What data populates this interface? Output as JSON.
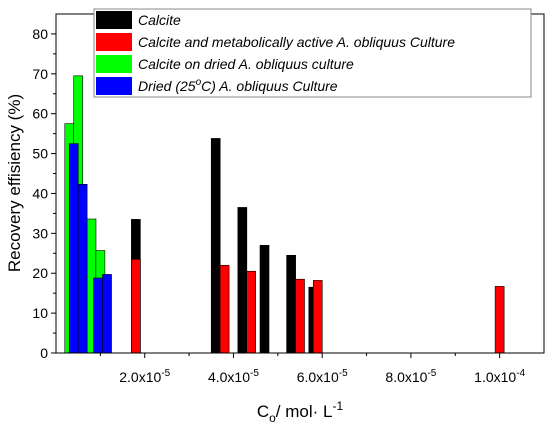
{
  "chart_data": {
    "type": "bar",
    "xlabel": {
      "main": "C",
      "sub": "o",
      "rest": "/ mol· L",
      "sup": "-1"
    },
    "ylabel": "Recovery effisiency (%)",
    "xlim": [
      0,
      0.00011
    ],
    "ylim": [
      0,
      85
    ],
    "x_ticks": [
      {
        "value": 2e-05,
        "mantissa": "2.0x10",
        "exp": "-5"
      },
      {
        "value": 4e-05,
        "mantissa": "4.0x10",
        "exp": "-5"
      },
      {
        "value": 6e-05,
        "mantissa": "6.0x10",
        "exp": "-5"
      },
      {
        "value": 8e-05,
        "mantissa": "8.0x10",
        "exp": "-5"
      },
      {
        "value": 0.0001,
        "mantissa": "1.0x10",
        "exp": "-4"
      }
    ],
    "y_ticks": [
      0,
      10,
      20,
      30,
      40,
      50,
      60,
      70,
      80
    ],
    "legend_position": "top-right",
    "grid": false,
    "series": [
      {
        "name": "Calcite",
        "color": "#000000",
        "points": [
          {
            "x": 1.8e-05,
            "y": 33.5
          },
          {
            "x": 3.6e-05,
            "y": 53.8
          },
          {
            "x": 4.2e-05,
            "y": 36.5
          },
          {
            "x": 4.7e-05,
            "y": 27.0
          },
          {
            "x": 5.3e-05,
            "y": 24.5
          },
          {
            "x": 5.8e-05,
            "y": 16.5
          }
        ]
      },
      {
        "name": "Calcite and metabolically active A. obliquus Culture",
        "color": "#ff0000",
        "points": [
          {
            "x": 1.8e-05,
            "y": 23.5
          },
          {
            "x": 3.8e-05,
            "y": 22.0
          },
          {
            "x": 4.4e-05,
            "y": 20.5
          },
          {
            "x": 5.5e-05,
            "y": 18.5
          },
          {
            "x": 5.9e-05,
            "y": 18.2
          },
          {
            "x": 0.0001,
            "y": 16.7
          }
        ]
      },
      {
        "name": "Calcite on dried A. obliquus culture",
        "color": "#00ff00",
        "points": [
          {
            "x": 3e-06,
            "y": 57.5
          },
          {
            "x": 5e-06,
            "y": 69.5
          },
          {
            "x": 8e-06,
            "y": 33.6
          },
          {
            "x": 1e-05,
            "y": 25.7
          }
        ]
      },
      {
        "name": "Dried (25°C) A. obliquus Culture",
        "name_parts": {
          "before": "Dried (25",
          "sup": "o",
          "after": "C) A. obliquus Culture"
        },
        "color": "#0000ff",
        "points": [
          {
            "x": 4e-06,
            "y": 52.5
          },
          {
            "x": 6e-06,
            "y": 42.3
          },
          {
            "x": 9.5e-06,
            "y": 18.8
          },
          {
            "x": 1.15e-05,
            "y": 19.7
          }
        ]
      }
    ]
  }
}
